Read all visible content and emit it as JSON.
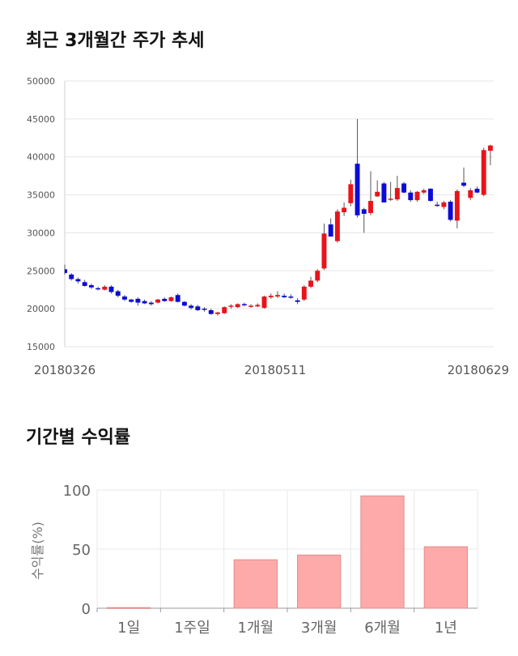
{
  "sections": {
    "price_title": "최근 3개월간 주가 추세",
    "returns_title": "기간별 수익률"
  },
  "chart_data": [
    {
      "type": "candlestick",
      "title": "최근 3개월간 주가 추세",
      "ylim": [
        15000,
        50000
      ],
      "y_ticks": [
        "50000",
        "45000",
        "40000",
        "35000",
        "30000",
        "25000",
        "20000",
        "15000"
      ],
      "x_ticks": [
        "20180326",
        "20180511",
        "20180629"
      ],
      "grid": true,
      "colors": {
        "up": "#e8141a",
        "down": "#0c0cd6",
        "wick": "#555555"
      },
      "candles": [
        [
          25200,
          25800,
          24500,
          24700
        ],
        [
          24500,
          24700,
          23700,
          23900
        ],
        [
          23900,
          24100,
          23300,
          23600
        ],
        [
          23500,
          23800,
          22900,
          23000
        ],
        [
          23100,
          23300,
          22600,
          22800
        ],
        [
          22700,
          22900,
          22400,
          22600
        ],
        [
          22500,
          23100,
          22400,
          22900
        ],
        [
          22900,
          23100,
          22000,
          22200
        ],
        [
          22300,
          22500,
          21500,
          21700
        ],
        [
          21600,
          21800,
          21000,
          21200
        ],
        [
          21200,
          21300,
          20800,
          20900
        ],
        [
          21300,
          21500,
          20400,
          20800
        ],
        [
          21000,
          21200,
          20600,
          20700
        ],
        [
          20800,
          21000,
          20400,
          20600
        ],
        [
          20800,
          21300,
          20700,
          21200
        ],
        [
          21300,
          21500,
          20900,
          21000
        ],
        [
          21000,
          21600,
          20900,
          21500
        ],
        [
          21800,
          22000,
          20800,
          20900
        ],
        [
          20900,
          21000,
          20300,
          20400
        ],
        [
          20400,
          20600,
          19900,
          20100
        ],
        [
          20300,
          20500,
          19700,
          19800
        ],
        [
          20000,
          20200,
          19600,
          19900
        ],
        [
          19800,
          20000,
          19200,
          19300
        ],
        [
          19300,
          19600,
          19100,
          19500
        ],
        [
          19400,
          20300,
          19300,
          20200
        ],
        [
          20300,
          20600,
          20000,
          20400
        ],
        [
          20200,
          20700,
          20100,
          20600
        ],
        [
          20600,
          20800,
          20300,
          20500
        ],
        [
          20300,
          20600,
          20100,
          20400
        ],
        [
          20300,
          20700,
          20200,
          20500
        ],
        [
          20100,
          21700,
          20000,
          21600
        ],
        [
          21500,
          22000,
          21300,
          21700
        ],
        [
          21600,
          22300,
          21400,
          21800
        ],
        [
          21700,
          22000,
          21400,
          21500
        ],
        [
          21600,
          21900,
          21300,
          21500
        ],
        [
          21100,
          21400,
          20600,
          20900
        ],
        [
          21200,
          23100,
          21000,
          22900
        ],
        [
          22900,
          24200,
          22700,
          23700
        ],
        [
          23700,
          25200,
          23500,
          25000
        ],
        [
          25300,
          31200,
          25100,
          29900
        ],
        [
          31100,
          31900,
          29600,
          29500
        ],
        [
          28900,
          33100,
          28700,
          32800
        ],
        [
          32700,
          34000,
          32200,
          33300
        ],
        [
          33900,
          37000,
          33500,
          36400
        ],
        [
          39100,
          45000,
          32000,
          32300
        ],
        [
          33100,
          33300,
          30000,
          32500
        ],
        [
          32600,
          38100,
          32300,
          34200
        ],
        [
          34800,
          36900,
          34700,
          35400
        ],
        [
          36500,
          36700,
          34000,
          34000
        ],
        [
          34400,
          36700,
          34200,
          34500
        ],
        [
          34400,
          37500,
          34200,
          35900
        ],
        [
          36500,
          36700,
          35200,
          35300
        ],
        [
          35300,
          35600,
          34100,
          34300
        ],
        [
          34300,
          35500,
          34100,
          35400
        ],
        [
          35300,
          35800,
          35100,
          35600
        ],
        [
          35800,
          35900,
          34100,
          34200
        ],
        [
          33700,
          34100,
          33400,
          33600
        ],
        [
          33400,
          34200,
          33100,
          34000
        ],
        [
          34100,
          34300,
          31500,
          31700
        ],
        [
          31600,
          35700,
          30600,
          35500
        ],
        [
          36600,
          38600,
          36000,
          36200
        ],
        [
          34600,
          35900,
          34300,
          35600
        ],
        [
          35800,
          36100,
          35200,
          35300
        ],
        [
          35000,
          41200,
          34800,
          40900
        ],
        [
          40800,
          41600,
          38900,
          41500
        ]
      ]
    },
    {
      "type": "bar",
      "title": "기간별 수익률",
      "ylabel": "수익률(%)",
      "ylim": [
        0,
        100
      ],
      "y_ticks": [
        "0",
        "50",
        "100"
      ],
      "categories": [
        "1일",
        "1주일",
        "1개월",
        "3개월",
        "6개월",
        "1년"
      ],
      "values": [
        0.5,
        0,
        41,
        45,
        95,
        52
      ],
      "colors": {
        "bar": "#ffaaaa",
        "bar_edge": "#e08c8c"
      }
    }
  ]
}
